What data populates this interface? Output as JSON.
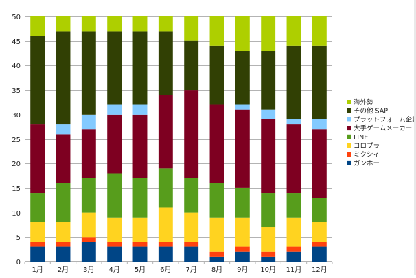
{
  "chart_data": {
    "type": "bar",
    "stacked": true,
    "title": "",
    "xlabel": "",
    "ylabel": "",
    "ylim": [
      0,
      50
    ],
    "yticks": [
      0,
      5,
      10,
      15,
      20,
      25,
      30,
      35,
      40,
      45,
      50
    ],
    "grid": true,
    "legend_position": "right",
    "categories": [
      "1月",
      "2月",
      "3月",
      "4月",
      "5月",
      "6月",
      "7月",
      "8月",
      "9月",
      "10月",
      "11月",
      "12月"
    ],
    "series": [
      {
        "name": "ガンホー",
        "color": "#004586",
        "values": [
          3,
          3,
          4,
          3,
          3,
          3,
          3,
          1,
          2,
          1,
          2,
          3
        ]
      },
      {
        "name": "ミクシィ",
        "color": "#ff420e",
        "values": [
          1,
          1,
          1,
          1,
          1,
          1,
          1,
          1,
          1,
          1,
          1,
          1
        ]
      },
      {
        "name": "コロプラ",
        "color": "#ffd320",
        "values": [
          4,
          4,
          5,
          5,
          5,
          7,
          6,
          7,
          6,
          5,
          6,
          4
        ]
      },
      {
        "name": "LINE",
        "color": "#579d1c",
        "values": [
          6,
          8,
          7,
          9,
          8,
          8,
          7,
          7,
          6,
          7,
          5,
          5
        ]
      },
      {
        "name": "大手ゲームメーカー",
        "color": "#7e0021",
        "values": [
          14,
          10,
          10,
          12,
          13,
          15,
          18,
          16,
          16,
          15,
          14,
          14
        ]
      },
      {
        "name": "プラットフォーム企業",
        "color": "#83caff",
        "values": [
          0,
          2,
          3,
          2,
          2,
          0,
          0,
          0,
          1,
          2,
          1,
          2
        ]
      },
      {
        "name": "その他 SAP",
        "color": "#314004",
        "values": [
          18,
          19,
          17,
          15,
          15,
          13,
          10,
          12,
          11,
          12,
          15,
          15
        ]
      },
      {
        "name": "海外勢",
        "color": "#aecf00",
        "values": [
          4,
          3,
          3,
          3,
          3,
          3,
          5,
          6,
          7,
          7,
          6,
          6
        ]
      }
    ]
  }
}
